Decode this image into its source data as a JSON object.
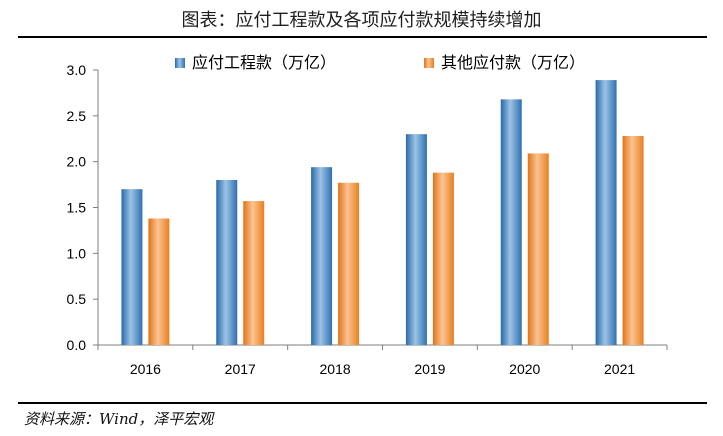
{
  "header": {
    "title": "图表：应付工程款及各项应付款规模持续增加"
  },
  "footer": {
    "source": "资料来源：Wind，泽平宏观"
  },
  "colors": {
    "series1": "#4f8ec9",
    "series2": "#f4913a"
  },
  "chart_data": {
    "type": "bar",
    "categories": [
      "2016",
      "2017",
      "2018",
      "2019",
      "2020",
      "2021"
    ],
    "series": [
      {
        "name": "应付工程款（万亿）",
        "values": [
          1.7,
          1.8,
          1.94,
          2.3,
          2.68,
          2.89
        ]
      },
      {
        "name": "其他应付款（万亿）",
        "values": [
          1.38,
          1.57,
          1.77,
          1.88,
          2.09,
          2.28
        ]
      }
    ],
    "ylim": [
      0,
      3.0
    ],
    "yticks": [
      "0.0",
      "0.5",
      "1.0",
      "1.5",
      "2.0",
      "2.5",
      "3.0"
    ],
    "legend": "top",
    "grid": false
  }
}
